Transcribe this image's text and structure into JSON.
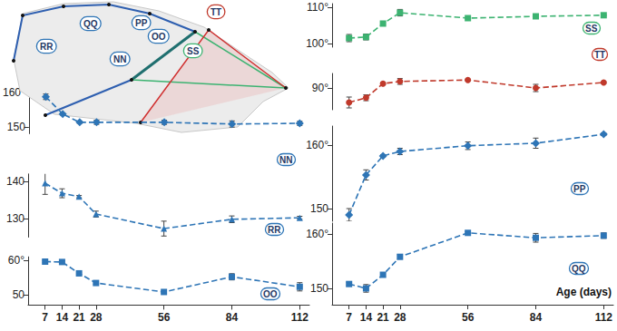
{
  "chart_data": [
    {
      "type": "line",
      "x": [
        7,
        14,
        21,
        28,
        56,
        84,
        112
      ],
      "xlim": [
        0,
        116
      ],
      "tick_labels": "y",
      "ylim": [
        148,
        161
      ],
      "yticks": [
        150,
        {
          "value": 160,
          "label": "160°"
        }
      ],
      "series": [
        {
          "name": "NN",
          "color": "#2e75b6",
          "marker": "diamond",
          "line_style": "dashed",
          "values": [
            158.7,
            153.7,
            151.3,
            151.3,
            151.3,
            150.8,
            151.0
          ],
          "errors": [
            0.8,
            0.3,
            0.3,
            0.6,
            0.6,
            0.9,
            0.6
          ]
        }
      ]
    },
    {
      "type": "line",
      "x": [
        7,
        14,
        21,
        28,
        56,
        84,
        112
      ],
      "xlim": [
        0,
        116
      ],
      "tick_labels": "y",
      "ylim": [
        125,
        142
      ],
      "yticks": [
        130,
        140
      ],
      "series": [
        {
          "name": "RR",
          "color": "#2e75b6",
          "marker": "triangle",
          "line_style": "dashed",
          "values": [
            139.5,
            136.8,
            135.9,
            131.2,
            127.3,
            129.8,
            130.2
          ],
          "errors": [
            3,
            1.2,
            0.3,
            0.8,
            2,
            0.9,
            0.4
          ]
        }
      ]
    },
    {
      "type": "line",
      "x": [
        7,
        14,
        21,
        28,
        56,
        84,
        112
      ],
      "xlim": [
        0,
        116
      ],
      "xticks": [
        7,
        14,
        21,
        28,
        56,
        84,
        112
      ],
      "ylim": [
        47,
        61
      ],
      "yticks": [
        50,
        {
          "value": 60,
          "label": "60°"
        }
      ],
      "series": [
        {
          "name": "OO",
          "color": "#2e75b6",
          "marker": "square",
          "line_style": "dashed",
          "values": [
            59.6,
            59.5,
            56.2,
            53.4,
            50.8,
            55.2,
            52.3
          ],
          "errors": [
            0.3,
            0.3,
            0.3,
            0.4,
            0.3,
            0.9,
            1.2
          ]
        }
      ]
    },
    {
      "type": "line",
      "x": [
        7,
        14,
        21,
        28,
        56,
        84,
        112
      ],
      "xlim": [
        0,
        116
      ],
      "tick_labels": "y",
      "ylim": [
        99,
        111
      ],
      "yticks": [
        {
          "value": 100,
          "label": "100°"
        },
        {
          "value": 110,
          "label": "110°"
        }
      ],
      "series": [
        {
          "name": "SS",
          "color": "#3cb371",
          "marker": "square",
          "line_style": "dashed",
          "values": [
            101.5,
            101.8,
            105.5,
            108.5,
            107,
            107.5,
            107.8
          ],
          "errors": [
            1,
            0.8,
            0.3,
            0.9,
            0.2,
            0.2,
            0.1
          ]
        }
      ]
    },
    {
      "type": "line",
      "x": [
        7,
        14,
        21,
        28,
        56,
        84,
        112
      ],
      "xlim": [
        0,
        116
      ],
      "tick_labels": "y",
      "ylim": [
        84,
        94
      ],
      "yticks": [
        {
          "value": 90,
          "label": "90°"
        }
      ],
      "series": [
        {
          "name": "TT",
          "color": "#c0392b",
          "marker": "circle",
          "line_style": "dashed",
          "values": [
            86,
            87.3,
            91.2,
            91.8,
            92.2,
            90,
            91.5
          ],
          "errors": [
            1.5,
            0.8,
            0.3,
            0.8,
            0.2,
            1,
            0.2
          ]
        }
      ]
    },
    {
      "type": "line",
      "x": [
        7,
        14,
        21,
        28,
        56,
        84,
        112
      ],
      "xlim": [
        0,
        116
      ],
      "tick_labels": "y",
      "ylim": [
        148,
        163
      ],
      "yticks": [
        150,
        {
          "value": 160,
          "label": "160°"
        }
      ],
      "series": [
        {
          "name": "PP",
          "color": "#2e75b6",
          "marker": "diamond",
          "line_style": "dashed",
          "values": [
            149,
            155.3,
            158.3,
            159,
            159.9,
            160.3,
            161.7
          ],
          "errors": [
            1,
            0.8,
            0.2,
            0.5,
            0.6,
            0.8,
            0.2
          ]
        }
      ]
    },
    {
      "type": "line",
      "x": [
        7,
        14,
        21,
        28,
        56,
        84,
        112
      ],
      "xlim": [
        0,
        116
      ],
      "xticks": [
        7,
        14,
        21,
        28,
        56,
        84,
        112
      ],
      "xlabel": "Age (days)",
      "ylim": [
        147,
        162
      ],
      "yticks": [
        150,
        {
          "value": 160,
          "label": "160°"
        }
      ],
      "series": [
        {
          "name": "QQ",
          "color": "#2e75b6",
          "marker": "square",
          "line_style": "dashed",
          "values": [
            150.8,
            150,
            152.5,
            155.8,
            160.2,
            159.3,
            159.7
          ],
          "errors": [
            0.3,
            0.7,
            0.4,
            0.4,
            0.2,
            0.8,
            0.5
          ]
        }
      ]
    }
  ],
  "diagram": {
    "labels": [
      {
        "text": "RR",
        "color": "#2e75b6"
      },
      {
        "text": "QQ",
        "color": "#2e75b6"
      },
      {
        "text": "PP",
        "color": "#2e75b6"
      },
      {
        "text": "OO",
        "color": "#2e75b6"
      },
      {
        "text": "NN",
        "color": "#2e75b6"
      },
      {
        "text": "SS",
        "color": "#3cb371"
      },
      {
        "text": "TT",
        "color": "#c0392b"
      }
    ]
  }
}
